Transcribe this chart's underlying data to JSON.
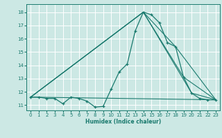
{
  "xlabel": "Humidex (Indice chaleur)",
  "background_color": "#cce8e4",
  "grid_color": "#ffffff",
  "line_color": "#1a7a6e",
  "xlim": [
    -0.5,
    23.5
  ],
  "ylim": [
    10.6,
    18.6
  ],
  "xticks": [
    0,
    1,
    2,
    3,
    4,
    5,
    6,
    7,
    8,
    9,
    10,
    11,
    12,
    13,
    14,
    15,
    16,
    17,
    18,
    19,
    20,
    21,
    22,
    23
  ],
  "yticks": [
    11,
    12,
    13,
    14,
    15,
    16,
    17,
    18
  ],
  "line1_x": [
    0,
    1,
    2,
    3,
    4,
    5,
    6,
    7,
    8,
    9,
    10,
    11,
    12,
    13,
    14,
    15,
    16,
    17,
    18,
    19,
    20,
    21,
    22,
    23
  ],
  "line1_y": [
    11.6,
    11.6,
    11.5,
    11.5,
    11.1,
    11.6,
    11.5,
    11.3,
    10.85,
    10.9,
    12.2,
    13.5,
    14.1,
    16.6,
    18.0,
    17.8,
    17.2,
    15.7,
    15.4,
    13.1,
    11.9,
    11.5,
    11.4,
    11.4
  ],
  "line2_x": [
    0,
    23
  ],
  "line2_y": [
    11.6,
    11.4
  ],
  "line3_x": [
    0,
    14,
    20,
    23
  ],
  "line3_y": [
    11.6,
    18.0,
    11.9,
    11.4
  ],
  "line4_x": [
    0,
    14,
    19,
    23
  ],
  "line4_y": [
    11.6,
    18.0,
    13.1,
    11.4
  ],
  "line5_x": [
    0,
    14,
    18,
    23
  ],
  "line5_y": [
    11.6,
    18.0,
    15.4,
    11.4
  ]
}
